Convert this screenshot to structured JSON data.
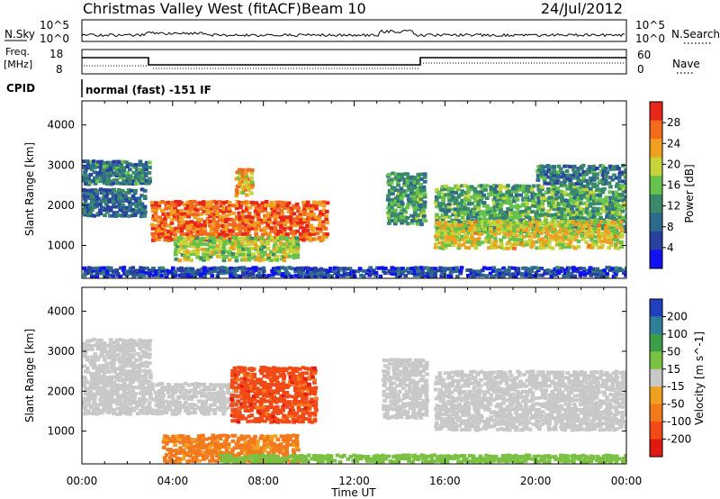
{
  "header": {
    "station": "Christmas Valley West (fitACF)",
    "beam": "Beam 10",
    "date": "24/Jul/2012"
  },
  "strip": {
    "nsky_label": "N.Sky",
    "nsky_ticks": [
      "10^5",
      "10^0"
    ],
    "nsearch_label": "N.Search",
    "nsearch_ticks": [
      "10^5",
      "10^0"
    ],
    "freq_label_1": "Freq.",
    "freq_label_2": "[MHz]",
    "freq_ticks": [
      "18",
      "8"
    ],
    "nave_label": "Nave",
    "nave_ticks": [
      "60",
      "0"
    ],
    "cpid_label": "CPID",
    "cpid_text": "normal (fast) -151 IF"
  },
  "chart_data": [
    {
      "type": "heatmap",
      "title": "",
      "xlabel": "",
      "ylabel": "Slant Range [km]",
      "x_ticks": [
        "00:00",
        "04:00",
        "08:00",
        "12:00",
        "16:00",
        "20:00",
        "00:00"
      ],
      "xlim_hours": [
        0,
        24
      ],
      "y_ticks": [
        1000,
        2000,
        3000,
        4000
      ],
      "ylim": [
        180,
        4600
      ],
      "colorbar": {
        "label": "Power [dB]",
        "ticks": [
          4,
          8,
          12,
          16,
          20,
          24,
          28
        ],
        "colors": [
          "#1010f0",
          "#2840a0",
          "#2d6a8c",
          "#3a8a6a",
          "#66c24a",
          "#c8d23a",
          "#f0a020",
          "#f26b1c",
          "#e8261a"
        ]
      },
      "regions": [
        {
          "name": "band-low",
          "t": [
            0,
            24
          ],
          "r": [
            200,
            450
          ],
          "db": 6
        },
        {
          "name": "early-upper",
          "t": [
            0,
            3
          ],
          "r": [
            2500,
            3100
          ],
          "db": 10
        },
        {
          "name": "early-mid",
          "t": [
            0,
            2.8
          ],
          "r": [
            1700,
            2400
          ],
          "db": 9
        },
        {
          "name": "main-arc",
          "t": [
            3,
            10.8
          ],
          "r": [
            1100,
            2100
          ],
          "db": 27
        },
        {
          "name": "peak",
          "t": [
            6.7,
            7.5
          ],
          "r": [
            2200,
            2900
          ],
          "db": 22
        },
        {
          "name": "lower-stripe",
          "t": [
            4.0,
            9.5
          ],
          "r": [
            600,
            1200
          ],
          "db": 18
        },
        {
          "name": "mid-echo",
          "t": [
            13.4,
            15.1
          ],
          "r": [
            1500,
            2800
          ],
          "db": 13
        },
        {
          "name": "late-band",
          "t": [
            15.5,
            24
          ],
          "r": [
            1300,
            2500
          ],
          "db": 14
        },
        {
          "name": "late-high",
          "t": [
            15.5,
            23.8
          ],
          "r": [
            900,
            1600
          ],
          "db": 20
        },
        {
          "name": "late-upper",
          "t": [
            20,
            24
          ],
          "r": [
            2500,
            3000
          ],
          "db": 10
        }
      ]
    },
    {
      "type": "heatmap",
      "title": "",
      "xlabel": "Time UT",
      "ylabel": "Slant Range [km]",
      "x_ticks": [
        "00:00",
        "04:00",
        "08:00",
        "12:00",
        "16:00",
        "20:00",
        "00:00"
      ],
      "xlim_hours": [
        0,
        24
      ],
      "y_ticks": [
        1000,
        2000,
        3000,
        4000
      ],
      "ylim": [
        180,
        4600
      ],
      "colorbar": {
        "label": "Velocity [m s^-1]",
        "ticks": [
          200,
          100,
          50,
          15,
          -15,
          -50,
          -100,
          -200
        ],
        "colors": [
          "#2040c0",
          "#2e7f9a",
          "#3d9e48",
          "#7ac142",
          "#c8c8c8",
          "#f0a020",
          "#f27a1c",
          "#f24a16",
          "#e01a12"
        ]
      },
      "regions": [
        {
          "name": "early-gray",
          "t": [
            0,
            3
          ],
          "r": [
            1400,
            3300
          ],
          "v": 0
        },
        {
          "name": "arc-gray",
          "t": [
            3,
            7
          ],
          "r": [
            1400,
            2200
          ],
          "v": 0
        },
        {
          "name": "arc-red",
          "t": [
            6.5,
            10.3
          ],
          "r": [
            1200,
            2600
          ],
          "v": -150
        },
        {
          "name": "lower-orange",
          "t": [
            3.5,
            9.5
          ],
          "r": [
            200,
            900
          ],
          "v": -70
        },
        {
          "name": "ground-green",
          "t": [
            6,
            24
          ],
          "r": [
            200,
            400
          ],
          "v": 30
        },
        {
          "name": "mid-gray",
          "t": [
            13.2,
            15.2
          ],
          "r": [
            1300,
            2800
          ],
          "v": 0
        },
        {
          "name": "late-gray",
          "t": [
            15.5,
            24
          ],
          "r": [
            1000,
            2500
          ],
          "v": 0
        }
      ]
    }
  ]
}
